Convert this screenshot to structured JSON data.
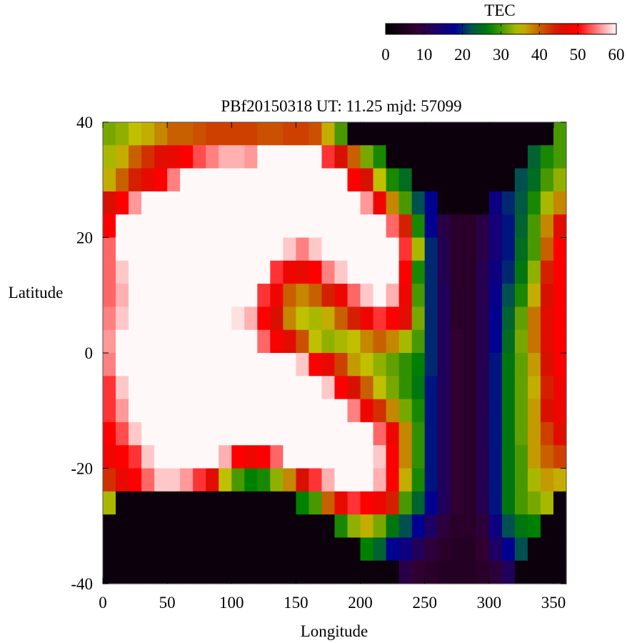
{
  "chart_data": {
    "type": "heatmap",
    "title": "PBf20150318  UT: 11.25  mjd: 57099",
    "xlabel": "Longitude",
    "ylabel": "Latitude",
    "xlim": [
      0,
      360
    ],
    "ylim": [
      -40,
      40
    ],
    "x_ticks": [
      "0",
      "50",
      "100",
      "150",
      "200",
      "250",
      "300",
      "350"
    ],
    "y_ticks": [
      "40",
      "20",
      "0",
      "-20",
      "-40"
    ],
    "colorbar": {
      "label": "TEC",
      "range": [
        0,
        60
      ],
      "ticks": [
        "0",
        "10",
        "20",
        "30",
        "40",
        "50",
        "60"
      ],
      "colors": {
        "0": "#000000",
        "10": "#300040",
        "20": "#000090",
        "30": "#008000",
        "35": "#c0c000",
        "40": "#c86000",
        "50": "#ff0000",
        "60": "#ffffff"
      },
      "position": "top-right"
    },
    "lon_centers": [
      5,
      15,
      25,
      35,
      45,
      55,
      65,
      75,
      85,
      95,
      105,
      115,
      125,
      135,
      145,
      155,
      165,
      175,
      185,
      195,
      205,
      215,
      225,
      235,
      245,
      255,
      265,
      275,
      285,
      295,
      305,
      315,
      325,
      335,
      345,
      355
    ],
    "lat_centers": [
      38,
      34,
      30,
      26,
      22,
      18,
      14,
      10,
      6,
      2,
      -2,
      -6,
      -10,
      -14,
      -18,
      -22,
      -26,
      -30,
      -34,
      -38
    ],
    "values": [
      [
        32,
        33,
        35,
        36,
        38,
        40,
        40,
        41,
        42,
        42,
        42,
        42,
        41,
        41,
        42,
        42,
        41,
        36,
        30,
        2,
        2,
        2,
        2,
        2,
        2,
        2,
        2,
        2,
        2,
        2,
        2,
        2,
        2,
        2,
        2,
        30
      ],
      [
        34,
        36,
        40,
        43,
        46,
        47,
        50,
        53,
        55,
        57,
        57,
        56,
        60,
        60,
        60,
        60,
        60,
        52,
        45,
        40,
        32,
        28,
        2,
        2,
        2,
        2,
        2,
        2,
        2,
        2,
        2,
        2,
        2,
        24,
        28,
        30
      ],
      [
        36,
        40,
        44,
        47,
        50,
        55,
        60,
        60,
        60,
        60,
        60,
        60,
        60,
        60,
        60,
        60,
        60,
        60,
        60,
        50,
        45,
        35,
        28,
        25,
        2,
        2,
        2,
        2,
        2,
        2,
        2,
        2,
        22,
        25,
        30,
        33
      ],
      [
        45,
        50,
        56,
        60,
        60,
        60,
        60,
        60,
        60,
        60,
        60,
        60,
        60,
        60,
        60,
        60,
        60,
        60,
        60,
        60,
        56,
        48,
        38,
        30,
        22,
        18,
        2,
        2,
        2,
        2,
        16,
        20,
        23,
        28,
        34,
        38
      ],
      [
        50,
        60,
        60,
        60,
        60,
        60,
        60,
        60,
        60,
        60,
        60,
        60,
        60,
        60,
        60,
        60,
        60,
        60,
        60,
        60,
        60,
        60,
        54,
        44,
        28,
        18,
        10,
        7,
        7,
        10,
        15,
        19,
        24,
        30,
        38,
        46
      ],
      [
        54,
        60,
        60,
        60,
        60,
        60,
        60,
        60,
        60,
        60,
        60,
        60,
        60,
        60,
        58,
        55,
        58,
        60,
        60,
        60,
        60,
        60,
        60,
        52,
        34,
        20,
        11,
        7,
        7,
        10,
        15,
        19,
        25,
        30,
        40,
        50
      ],
      [
        54,
        58,
        60,
        60,
        60,
        60,
        60,
        60,
        60,
        60,
        60,
        60,
        60,
        52,
        48,
        47,
        50,
        55,
        58,
        60,
        60,
        60,
        60,
        50,
        28,
        20,
        11,
        7,
        7,
        11,
        16,
        20,
        26,
        33,
        44,
        50
      ],
      [
        54,
        57,
        60,
        60,
        60,
        60,
        60,
        60,
        60,
        60,
        60,
        60,
        52,
        48,
        40,
        38,
        40,
        44,
        48,
        54,
        58,
        60,
        57,
        48,
        30,
        20,
        12,
        7,
        7,
        11,
        17,
        22,
        28,
        36,
        45,
        50
      ],
      [
        55,
        58,
        60,
        60,
        60,
        60,
        60,
        60,
        60,
        60,
        59,
        57,
        50,
        45,
        38,
        35,
        34,
        36,
        40,
        44,
        48,
        52,
        50,
        46,
        32,
        20,
        12,
        7,
        7,
        11,
        18,
        24,
        31,
        39,
        46,
        50
      ],
      [
        56,
        60,
        60,
        60,
        60,
        60,
        60,
        60,
        60,
        60,
        60,
        60,
        54,
        49,
        46,
        41,
        35,
        33,
        34,
        35,
        38,
        40,
        38,
        34,
        30,
        20,
        12,
        8,
        7,
        11,
        18,
        25,
        32,
        39,
        46,
        50
      ],
      [
        55,
        60,
        60,
        60,
        60,
        60,
        60,
        60,
        60,
        60,
        60,
        60,
        60,
        60,
        60,
        58,
        50,
        47,
        42,
        37,
        35,
        33,
        31,
        29,
        27,
        20,
        12,
        8,
        7,
        11,
        19,
        26,
        31,
        37,
        45,
        50
      ],
      [
        52,
        58,
        60,
        60,
        60,
        60,
        60,
        60,
        60,
        60,
        60,
        60,
        60,
        60,
        60,
        60,
        60,
        58,
        50,
        45,
        40,
        35,
        32,
        29,
        26,
        19,
        12,
        8,
        7,
        11,
        19,
        26,
        31,
        36,
        44,
        48
      ],
      [
        52,
        56,
        60,
        60,
        60,
        60,
        60,
        60,
        60,
        60,
        60,
        60,
        60,
        60,
        60,
        60,
        60,
        60,
        60,
        55,
        48,
        43,
        38,
        32,
        28,
        19,
        12,
        8,
        7,
        11,
        19,
        26,
        31,
        37,
        45,
        48
      ],
      [
        50,
        53,
        58,
        60,
        60,
        60,
        60,
        60,
        60,
        60,
        60,
        60,
        60,
        60,
        60,
        60,
        60,
        60,
        60,
        60,
        60,
        54,
        48,
        38,
        29,
        19,
        12,
        8,
        7,
        11,
        19,
        26,
        31,
        37,
        42,
        46
      ],
      [
        48,
        50,
        52,
        58,
        60,
        60,
        60,
        60,
        60,
        57,
        50,
        48,
        50,
        54,
        60,
        60,
        60,
        60,
        60,
        60,
        60,
        58,
        50,
        38,
        29,
        19,
        12,
        8,
        7,
        11,
        19,
        26,
        30,
        37,
        40,
        42
      ],
      [
        43,
        47,
        50,
        54,
        58,
        58,
        56,
        52,
        46,
        35,
        30,
        27,
        28,
        33,
        38,
        45,
        52,
        57,
        60,
        60,
        60,
        57,
        50,
        36,
        28,
        19,
        12,
        8,
        7,
        11,
        19,
        26,
        30,
        34,
        37,
        36
      ],
      [
        34,
        2,
        2,
        2,
        2,
        2,
        2,
        2,
        2,
        2,
        2,
        2,
        2,
        2,
        2,
        27,
        30,
        40,
        47,
        52,
        50,
        48,
        44,
        30,
        24,
        18,
        12,
        8,
        7,
        11,
        19,
        26,
        30,
        32,
        34,
        2
      ],
      [
        2,
        2,
        2,
        2,
        2,
        2,
        2,
        2,
        2,
        2,
        2,
        2,
        2,
        2,
        2,
        2,
        2,
        2,
        28,
        33,
        36,
        32,
        26,
        22,
        18,
        13,
        9,
        7,
        7,
        9,
        16,
        22,
        26,
        27,
        2,
        2
      ],
      [
        2,
        2,
        2,
        2,
        2,
        2,
        2,
        2,
        2,
        2,
        2,
        2,
        2,
        2,
        2,
        2,
        2,
        2,
        2,
        2,
        27,
        24,
        18,
        16,
        12,
        9,
        7,
        6,
        6,
        8,
        13,
        18,
        22,
        2,
        2,
        2
      ],
      [
        2,
        2,
        2,
        2,
        2,
        2,
        2,
        2,
        2,
        2,
        2,
        2,
        2,
        2,
        2,
        2,
        2,
        2,
        2,
        2,
        2,
        2,
        2,
        10,
        8,
        7,
        6,
        6,
        6,
        7,
        9,
        12,
        2,
        2,
        2,
        2
      ]
    ]
  }
}
